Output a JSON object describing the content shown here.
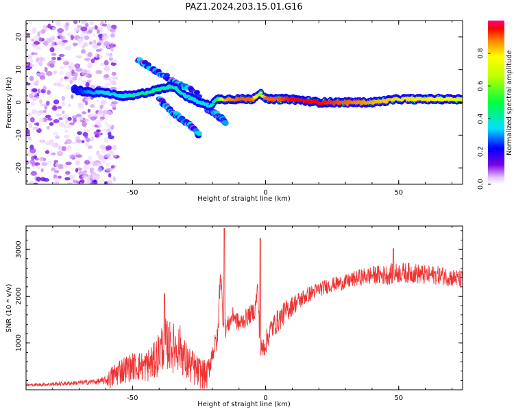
{
  "chart_data": [
    {
      "type": "heatmap",
      "title": "PAZ1.2024.203.15.01.G16",
      "xlabel": "Height of straight line (km)",
      "ylabel": "Frequency (Hz)",
      "xlim": [
        -90,
        74
      ],
      "ylim": [
        -25,
        25
      ],
      "xticks": [
        -50,
        0,
        50
      ],
      "yticks": [
        -20,
        -10,
        0,
        10,
        20
      ],
      "colorbar": {
        "label": "Normalized spectral amplitude",
        "range": [
          0,
          1
        ],
        "ticks": [
          0.0,
          0.2,
          0.4,
          0.6,
          0.8
        ]
      },
      "ridge": {
        "x": [
          -72,
          -66,
          -60,
          -55,
          -50,
          -45,
          -40,
          -35,
          -30,
          -25,
          -21,
          -18,
          -15,
          -10,
          -5,
          -2,
          0,
          5,
          10,
          20,
          30,
          40,
          50,
          60,
          70,
          74
        ],
        "y": [
          4,
          3,
          3,
          2,
          2,
          3,
          4,
          5,
          2,
          0,
          -1,
          1,
          1,
          1,
          1,
          3,
          1,
          1,
          1,
          0,
          0,
          0,
          1,
          1,
          1,
          1
        ],
        "amplitude": [
          0.2,
          0.3,
          0.35,
          0.35,
          0.4,
          0.45,
          0.45,
          0.4,
          0.4,
          0.35,
          0.35,
          0.5,
          0.85,
          0.9,
          0.9,
          0.6,
          0.9,
          0.9,
          0.95,
          0.95,
          0.9,
          0.85,
          0.8,
          0.8,
          0.75,
          0.7
        ]
      },
      "branches": [
        {
          "x": [
            -48,
            -40,
            -33,
            -28,
            -25
          ],
          "y": [
            13,
            9,
            6,
            4,
            2
          ]
        },
        {
          "x": [
            -40,
            -35,
            -30,
            -27,
            -25
          ],
          "y": [
            1,
            -3,
            -6,
            -8,
            -10
          ]
        },
        {
          "x": [
            -22,
            -18,
            -15
          ],
          "y": [
            -2,
            -4,
            -6
          ]
        }
      ]
    },
    {
      "type": "line",
      "xlabel": "Height of straight line (km)",
      "ylabel": "SNR (10 * v/v)",
      "xlim": [
        -90,
        74
      ],
      "ylim": [
        0,
        3500
      ],
      "xticks": [
        -50,
        0,
        50
      ],
      "yticks": [
        1000,
        2000,
        3000
      ],
      "series": [
        {
          "color": "#ee3333",
          "x": [
            -90,
            -80,
            -70,
            -65,
            -62,
            -60,
            -58,
            -55,
            -50,
            -45,
            -42,
            -40,
            -38,
            -35,
            -32,
            -30,
            -28,
            -26,
            -24,
            -22,
            -20,
            -18,
            -17,
            -16,
            -15,
            -12,
            -10,
            -8,
            -6,
            -4,
            -3,
            -2,
            0,
            2,
            5,
            8,
            10,
            15,
            20,
            25,
            30,
            35,
            40,
            45,
            50,
            55,
            60,
            65,
            70,
            74
          ],
          "y": [
            100,
            120,
            150,
            170,
            180,
            200,
            250,
            400,
            500,
            500,
            600,
            800,
            1000,
            900,
            900,
            600,
            500,
            400,
            350,
            300,
            800,
            1100,
            2600,
            1500,
            1300,
            1600,
            1400,
            1500,
            1600,
            1700,
            2200,
            800,
            1000,
            1300,
            1500,
            1700,
            1800,
            2000,
            2150,
            2250,
            2300,
            2400,
            2450,
            2450,
            2500,
            2500,
            2450,
            2450,
            2400,
            2350
          ],
          "noise": [
            30,
            40,
            50,
            60,
            70,
            100,
            250,
            300,
            300,
            350,
            400,
            500,
            550,
            550,
            500,
            450,
            400,
            350,
            350,
            300,
            250,
            250,
            300,
            200,
            200,
            200,
            200,
            200,
            200,
            200,
            200,
            250,
            250,
            250,
            250,
            250,
            220,
            180,
            160,
            160,
            160,
            180,
            200,
            220,
            220,
            220,
            220,
            200,
            200,
            200
          ],
          "spikes": [
            {
              "x": -15.5,
              "y": 3450
            },
            {
              "x": -2,
              "y": 3240
            },
            {
              "x": -38,
              "y": 2050
            },
            {
              "x": 48,
              "y": 3020
            }
          ]
        }
      ]
    }
  ]
}
